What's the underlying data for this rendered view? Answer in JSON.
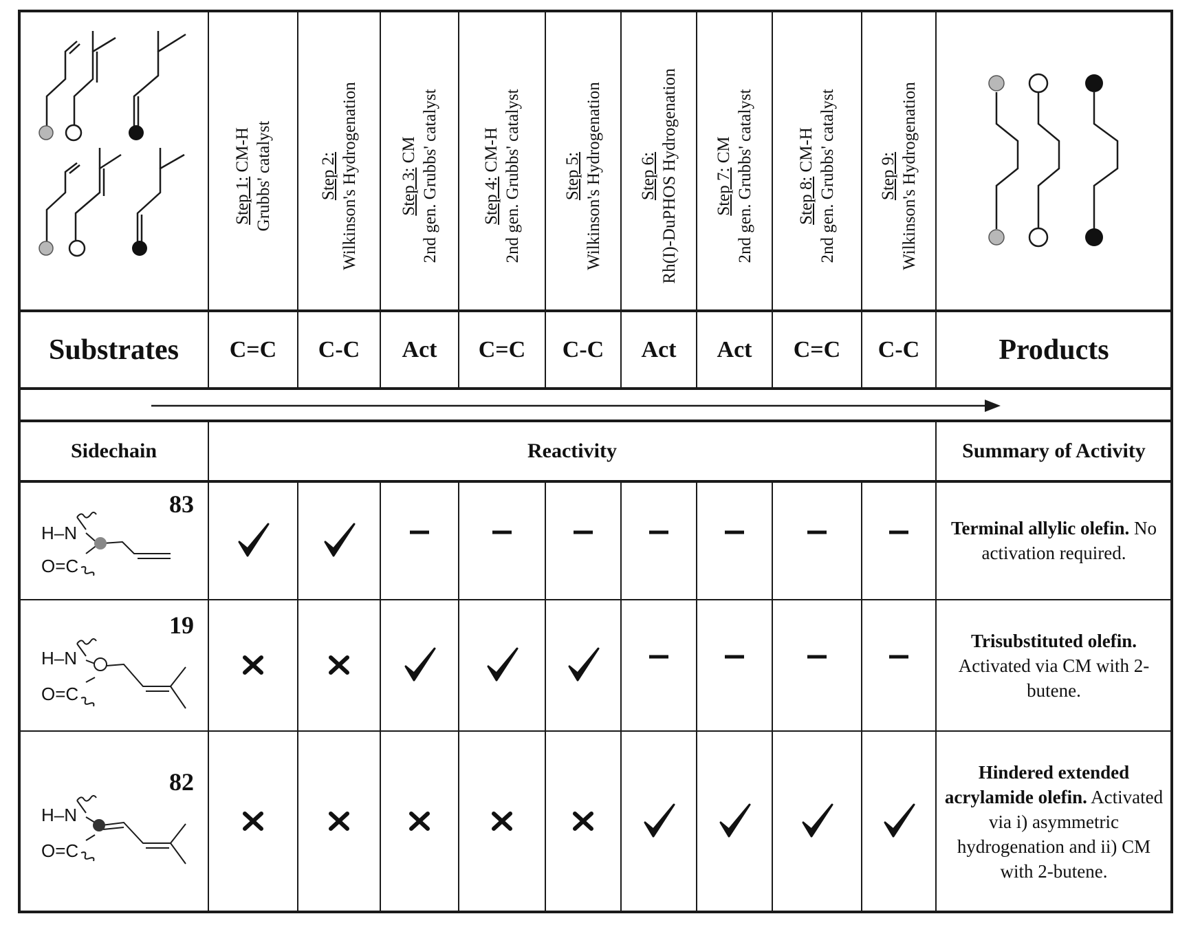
{
  "header": {
    "steps": [
      {
        "step": "Step 1:",
        "name": "CM-H",
        "catalyst": "Grubbs' catalyst"
      },
      {
        "step": "Step 2:",
        "name": "",
        "catalyst": "Wilkinson's Hydrogenation"
      },
      {
        "step": "Step 3:",
        "name": "CM",
        "catalyst": "2nd gen. Grubbs' catalyst"
      },
      {
        "step": "Step 4:",
        "name": "CM-H",
        "catalyst": "2nd gen. Grubbs' catalyst"
      },
      {
        "step": "Step 5:",
        "name": "",
        "catalyst": "Wilkinson's Hydrogenation"
      },
      {
        "step": "Step 6:",
        "name": "",
        "catalyst": "Rh(I)-DuPHOS Hydrogenation"
      },
      {
        "step": "Step 7:",
        "name": "CM",
        "catalyst": "2nd gen. Grubbs' catalyst"
      },
      {
        "step": "Step 8:",
        "name": "CM-H",
        "catalyst": "2nd gen. Grubbs' catalyst"
      },
      {
        "step": "Step 9:",
        "name": "",
        "catalyst": "Wilkinson's Hydrogenation"
      }
    ]
  },
  "labels": {
    "substrates": "Substrates",
    "products": "Products",
    "sidechain": "Sidechain",
    "reactivity": "Reactivity",
    "summary": "Summary of Activity"
  },
  "codes": [
    "C=C",
    "C-C",
    "Act",
    "C=C",
    "C-C",
    "Act",
    "Act",
    "C=C",
    "C-C"
  ],
  "rows": [
    {
      "compound": "83",
      "marks": [
        "check",
        "check",
        "dash",
        "dash",
        "dash",
        "dash",
        "dash",
        "dash",
        "dash"
      ],
      "summary_bold": "Terminal allylic olefin.",
      "summary_rest": "No activation required."
    },
    {
      "compound": "19",
      "marks": [
        "cross",
        "cross",
        "check",
        "check",
        "check",
        "dash",
        "dash",
        "dash",
        "dash"
      ],
      "summary_bold": "Trisubstituted olefin.",
      "summary_rest": "Activated via CM with 2-butene."
    },
    {
      "compound": "82",
      "marks": [
        "cross",
        "cross",
        "cross",
        "cross",
        "cross",
        "check",
        "check",
        "check",
        "check"
      ],
      "summary_bold": "Hindered extended acrylamide olefin.",
      "summary_rest": "Activated via i) asymmetric hydrogenation and ii) CM with 2-butene."
    }
  ],
  "structure_labels": {
    "nh": "H–N",
    "co": "O=C"
  },
  "colors": {
    "line": "#1a1a1a",
    "grey_atom": "#b8b8b8",
    "black_atom": "#111111"
  }
}
